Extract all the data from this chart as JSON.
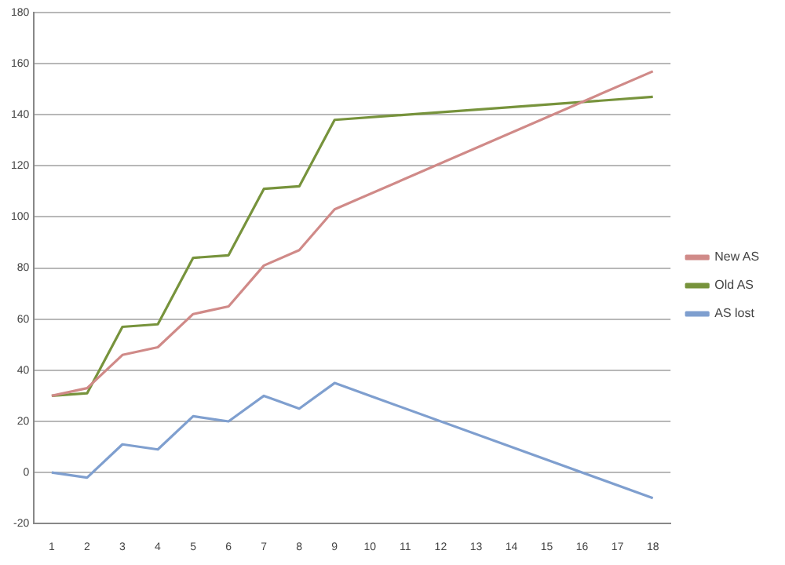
{
  "chart_data": {
    "type": "line",
    "x": [
      1,
      2,
      3,
      4,
      5,
      6,
      7,
      8,
      9,
      18
    ],
    "series": [
      {
        "name": "New AS",
        "color": "#d08a88",
        "values": [
          30,
          33,
          46,
          49,
          62,
          65,
          81,
          87,
          103,
          157
        ]
      },
      {
        "name": "Old AS",
        "color": "#77933c",
        "values": [
          30,
          31,
          57,
          58,
          84,
          85,
          111,
          112,
          138,
          147
        ]
      },
      {
        "name": "AS lost",
        "color": "#7f9fcf",
        "values": [
          0,
          -2,
          11,
          9,
          22,
          20,
          30,
          25,
          35,
          -10
        ]
      }
    ],
    "xlim": [
      0.5,
      18.5
    ],
    "xticks": [
      1,
      2,
      3,
      4,
      5,
      6,
      7,
      8,
      9,
      10,
      11,
      12,
      13,
      14,
      15,
      16,
      17,
      18
    ],
    "ylim": [
      -20,
      180
    ],
    "yticks": [
      -20,
      0,
      20,
      40,
      60,
      80,
      100,
      120,
      140,
      160,
      180
    ],
    "grid": "y",
    "legend": "right",
    "marker": "none"
  }
}
